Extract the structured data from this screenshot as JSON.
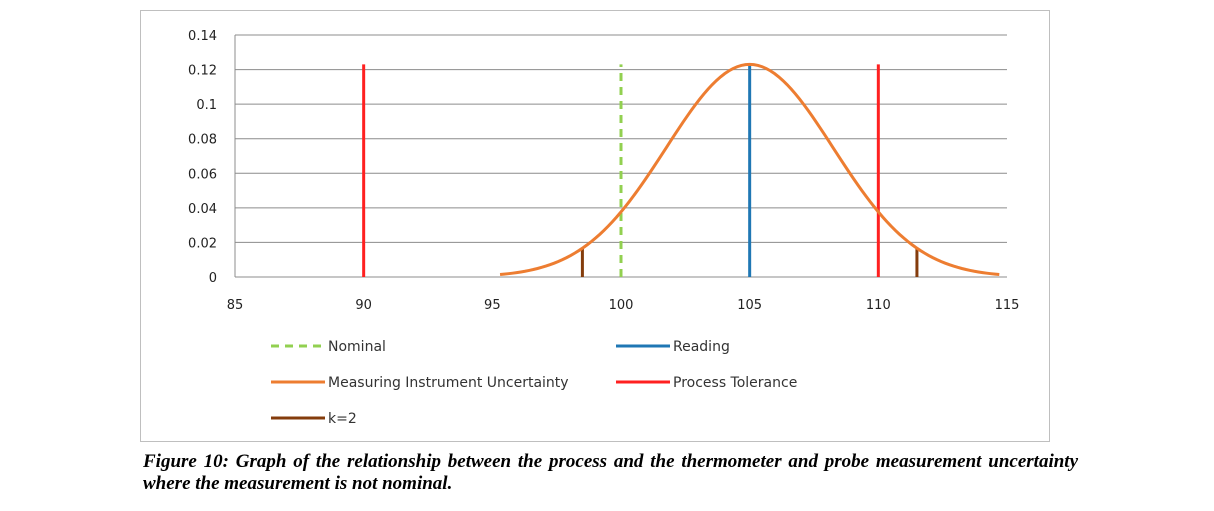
{
  "caption": "Figure 10: Graph of the relationship between the process and the thermometer and probe measurement uncertainty where the measurement is not nominal.",
  "chart_data": {
    "type": "line",
    "title": "",
    "xlabel": "",
    "ylabel": "",
    "xlim": [
      85,
      115
    ],
    "ylim": [
      0,
      0.14
    ],
    "x_ticks": [
      85,
      90,
      95,
      100,
      105,
      110,
      115
    ],
    "y_ticks": [
      0,
      0.02,
      0.04,
      0.06,
      0.08,
      0.1,
      0.12,
      0.14
    ],
    "x_tick_labels": [
      "85",
      "90",
      "95",
      "100",
      "105",
      "110",
      "115"
    ],
    "y_tick_labels": [
      "0",
      "0.02",
      "0.04",
      "0.06",
      "0.08",
      "0.1",
      "0.12",
      "0.14"
    ],
    "grid": "horizontal",
    "legend_position": "bottom",
    "series": [
      {
        "name": "Nominal",
        "kind": "vline",
        "x": 100,
        "y": [
          0,
          0.123
        ],
        "color": "#92d050",
        "dash": true
      },
      {
        "name": "Reading",
        "kind": "vline",
        "x": 105,
        "y": [
          0,
          0.123
        ],
        "color": "#1f77b4",
        "dash": false
      },
      {
        "name": "Measuring Instrument Uncertainty",
        "kind": "curve",
        "mean": 105,
        "sd": 3.25,
        "x_range": [
          95.3,
          114.7
        ],
        "peak": 0.123,
        "color": "#ed7d31"
      },
      {
        "name": "Process Tolerance",
        "kind": "vlines",
        "x": [
          90,
          110
        ],
        "y": [
          0,
          0.123
        ],
        "color": "#ff2020"
      },
      {
        "name": "k=2",
        "kind": "vlines",
        "x": [
          98.5,
          111.5
        ],
        "y": [
          0,
          0.0165
        ],
        "color": "#843c0c"
      }
    ]
  }
}
